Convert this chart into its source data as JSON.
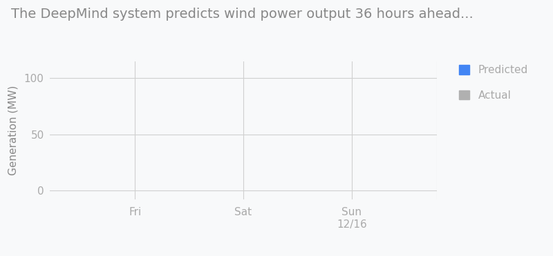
{
  "title": "The DeepMind system predicts wind power output 36 hours ahead...",
  "ylabel": "Generation (MW)",
  "xtick_labels": [
    "Fri",
    "Sat",
    "Sun\n12/16"
  ],
  "xtick_positions": [
    0.22,
    0.5,
    0.78
  ],
  "ylim": [
    -8,
    115
  ],
  "yticks": [
    0,
    50,
    100
  ],
  "grid_color": "#d0d0d0",
  "background_color": "#f8f9fa",
  "title_color": "#888888",
  "tick_color": "#aaaaaa",
  "label_color": "#888888",
  "legend_items": [
    {
      "label": "Predicted",
      "color": "#4285f4"
    },
    {
      "label": "Actual",
      "color": "#b0b0b0"
    }
  ],
  "title_fontsize": 14,
  "label_fontsize": 11,
  "tick_fontsize": 11
}
